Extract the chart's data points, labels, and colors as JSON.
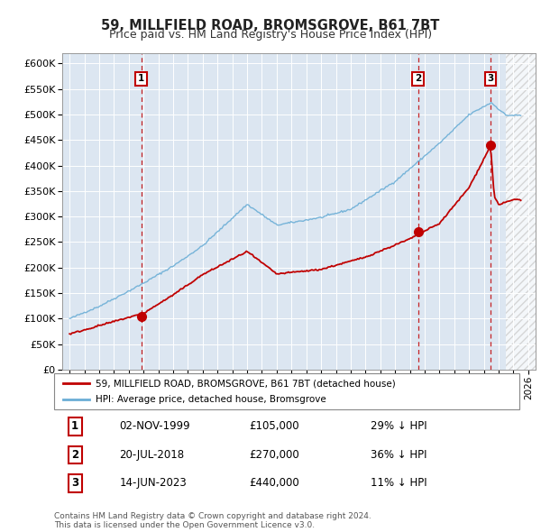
{
  "title": "59, MILLFIELD ROAD, BROMSGROVE, B61 7BT",
  "subtitle": "Price paid vs. HM Land Registry's House Price Index (HPI)",
  "sale_dates_num": [
    1999.84,
    2018.55,
    2023.45
  ],
  "sale_prices": [
    105000,
    270000,
    440000
  ],
  "sale_labels": [
    "1",
    "2",
    "3"
  ],
  "hpi_color": "#6baed6",
  "price_color": "#c00000",
  "vline_color": "#c00000",
  "plot_bg_color": "#dce6f1",
  "legend_entries": [
    "59, MILLFIELD ROAD, BROMSGROVE, B61 7BT (detached house)",
    "HPI: Average price, detached house, Bromsgrove"
  ],
  "table_data": [
    [
      "1",
      "02-NOV-1999",
      "£105,000",
      "29% ↓ HPI"
    ],
    [
      "2",
      "20-JUL-2018",
      "£270,000",
      "36% ↓ HPI"
    ],
    [
      "3",
      "14-JUN-2023",
      "£440,000",
      "11% ↓ HPI"
    ]
  ],
  "footnote": "Contains HM Land Registry data © Crown copyright and database right 2024.\nThis data is licensed under the Open Government Licence v3.0.",
  "ylim": [
    0,
    620000
  ],
  "yticks": [
    0,
    50000,
    100000,
    150000,
    200000,
    250000,
    300000,
    350000,
    400000,
    450000,
    500000,
    550000,
    600000
  ],
  "xlim_start": 1994.5,
  "xlim_end": 2026.5,
  "hatch_start": 2024.5
}
